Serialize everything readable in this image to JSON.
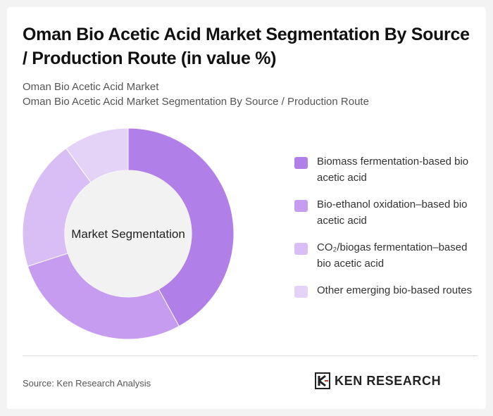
{
  "header": {
    "title": "Oman Bio Acetic Acid Market Segmentation By Source / Production Route (in value %)",
    "subtitle_line1": "Oman Bio Acetic Acid Market",
    "subtitle_line2": "Oman Bio Acetic Acid Market Segmentation By Source / Production Route"
  },
  "chart_data": {
    "type": "pie",
    "donut": true,
    "center_label": "Market Segmentation",
    "categories": [
      "Biomass fermentation-based bio acetic acid",
      "Bio-ethanol oxidation–based bio acetic acid",
      "CO₂/biogas fermentation–based bio acetic acid",
      "Other emerging bio-based routes"
    ],
    "values": [
      42,
      28,
      20,
      10
    ],
    "colors": [
      "#b07fe8",
      "#c59cf0",
      "#d9bef5",
      "#e4d3f7"
    ],
    "legend_position": "right"
  },
  "footer": {
    "source": "Source: Ken Research Analysis",
    "logo_text": "KEN RESEARCH"
  }
}
